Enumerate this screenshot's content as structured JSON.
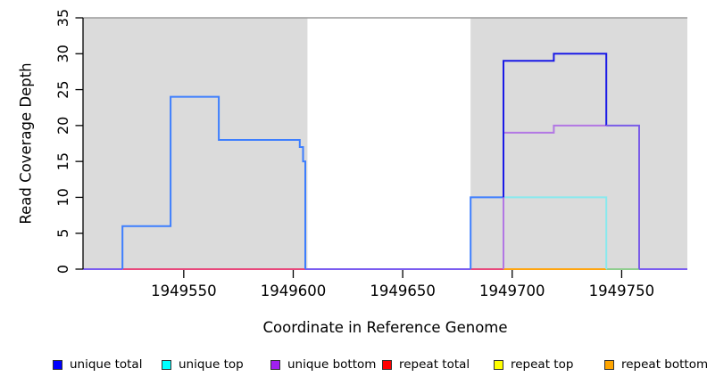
{
  "chart_data": {
    "type": "line",
    "subtype": "step-coverage-plot",
    "title": "",
    "xlabel": "Coordinate in Reference Genome",
    "ylabel": "Read Coverage Depth",
    "xlim": [
      1949504,
      1949780
    ],
    "ylim": [
      0,
      35
    ],
    "grid": false,
    "legend_position": "bottom",
    "x_ticks": [
      1949550,
      1949600,
      1949650,
      1949700,
      1949750
    ],
    "x_tick_labels": [
      "1949550",
      "1949600",
      "1949650",
      "1949700",
      "1949750"
    ],
    "y_ticks": [
      0,
      5,
      10,
      15,
      20,
      25,
      30,
      35
    ],
    "y_tick_labels": [
      "0",
      "5",
      "10",
      "15",
      "20",
      "25",
      "30",
      "35"
    ],
    "colors": {
      "shade": "#DBDBDB",
      "shade_top_line": "#9A9A9A",
      "axis": "#000000"
    },
    "shaded_regions": [
      {
        "name": "repeat-region-left",
        "x1": 1949504,
        "x2": 1949606.5,
        "y1": 0,
        "y2": 35
      },
      {
        "name": "repeat-region-right",
        "x1": 1949681,
        "x2": 1949780,
        "y1": 0,
        "y2": 35
      }
    ],
    "series": [
      {
        "name": "unique total",
        "color": "#0000FF",
        "step_points": [
          [
            1949504,
            0
          ],
          [
            1949522,
            6
          ],
          [
            1949544,
            24
          ],
          [
            1949566,
            18
          ],
          [
            1949603,
            17
          ],
          [
            1949604.5,
            15
          ],
          [
            1949605.5,
            0
          ],
          [
            1949681,
            10
          ],
          [
            1949696,
            29
          ],
          [
            1949719,
            30
          ],
          [
            1949743,
            20
          ],
          [
            1949758,
            0
          ],
          [
            1949780,
            0
          ]
        ]
      },
      {
        "name": "unique top",
        "color": "#00FFFF",
        "step_points": [
          [
            1949504,
            0
          ],
          [
            1949681,
            10
          ],
          [
            1949743,
            0
          ],
          [
            1949780,
            0
          ]
        ]
      },
      {
        "name": "unique bottom",
        "color": "#A020F0",
        "step_points": [
          [
            1949504,
            0
          ],
          [
            1949696,
            19
          ],
          [
            1949719,
            20
          ],
          [
            1949758,
            0
          ],
          [
            1949780,
            0
          ]
        ]
      },
      {
        "name": "repeat total",
        "color": "#FF0000",
        "step_points": [
          [
            1949504,
            0
          ],
          [
            1949780,
            0
          ]
        ]
      },
      {
        "name": "repeat top",
        "color": "#FFFF00",
        "step_points": [
          [
            1949504,
            0
          ],
          [
            1949780,
            0
          ]
        ]
      },
      {
        "name": "repeat bottom",
        "color": "#FFA500",
        "step_points": [
          [
            1949504,
            0
          ],
          [
            1949780,
            0
          ]
        ]
      }
    ],
    "rendered_segments": [
      {
        "name": "zero-line-far-left",
        "color": "#7A5CF0",
        "points": [
          [
            1949504,
            0
          ],
          [
            1949522,
            0
          ]
        ]
      },
      {
        "name": "zero-line-left-repeat",
        "color": "#E8487C",
        "points": [
          [
            1949522,
            0
          ],
          [
            1949605.5,
            0
          ]
        ]
      },
      {
        "name": "zero-line-gap",
        "color": "#7A5CF0",
        "points": [
          [
            1949605.5,
            0
          ],
          [
            1949681,
            0
          ]
        ]
      },
      {
        "name": "zero-line-right-repeat",
        "color": "#E8487C",
        "points": [
          [
            1949681,
            0
          ],
          [
            1949696,
            0
          ]
        ]
      },
      {
        "name": "zero-line-orange",
        "color": "#FFA510",
        "points": [
          [
            1949696,
            0
          ],
          [
            1949743,
            0
          ]
        ]
      },
      {
        "name": "zero-line-green",
        "color": "#8FCE8F",
        "points": [
          [
            1949743,
            0
          ],
          [
            1949758,
            0
          ]
        ]
      },
      {
        "name": "zero-line-far-right",
        "color": "#7A5CF0",
        "points": [
          [
            1949758,
            0
          ],
          [
            1949780,
            0
          ]
        ]
      },
      {
        "name": "left-unique-total-steps",
        "color": "#3D7EFE",
        "points": [
          [
            1949522,
            0
          ],
          [
            1949522,
            6
          ],
          [
            1949544,
            6
          ],
          [
            1949544,
            24
          ],
          [
            1949566,
            24
          ],
          [
            1949566,
            18
          ],
          [
            1949603,
            18
          ],
          [
            1949603,
            17
          ],
          [
            1949604.5,
            17
          ],
          [
            1949604.5,
            15
          ],
          [
            1949605.5,
            15
          ],
          [
            1949605.5,
            0
          ]
        ]
      },
      {
        "name": "right-total-rise-to-10",
        "color": "#3D7EFE",
        "points": [
          [
            1949681,
            0
          ],
          [
            1949681,
            10
          ],
          [
            1949696,
            10
          ]
        ]
      },
      {
        "name": "right-unique-top-10",
        "color": "#87E9EE",
        "points": [
          [
            1949696,
            10
          ],
          [
            1949743,
            10
          ],
          [
            1949743,
            0
          ]
        ]
      },
      {
        "name": "right-unique-bottom",
        "color": "#B277E4",
        "points": [
          [
            1949696,
            0
          ],
          [
            1949696,
            19
          ],
          [
            1949719,
            19
          ],
          [
            1949719,
            20
          ],
          [
            1949743,
            20
          ]
        ]
      },
      {
        "name": "right-unique-total-dark",
        "color": "#1A1AE6",
        "points": [
          [
            1949696,
            10
          ],
          [
            1949696,
            29
          ],
          [
            1949719,
            29
          ],
          [
            1949719,
            30
          ],
          [
            1949743,
            30
          ],
          [
            1949743,
            20
          ]
        ]
      },
      {
        "name": "right-overlap-20-drop",
        "color": "#7A5CE8",
        "points": [
          [
            1949743,
            20
          ],
          [
            1949758,
            20
          ],
          [
            1949758,
            0
          ]
        ]
      }
    ]
  },
  "legend": {
    "items": [
      {
        "label": "unique total",
        "color": "#0000FF"
      },
      {
        "label": "unique top",
        "color": "#00FFFF"
      },
      {
        "label": "unique bottom",
        "color": "#A020F0"
      },
      {
        "label": "repeat total",
        "color": "#FF0000"
      },
      {
        "label": "repeat top",
        "color": "#FFFF00"
      },
      {
        "label": "repeat bottom",
        "color": "#FFA500"
      }
    ]
  }
}
